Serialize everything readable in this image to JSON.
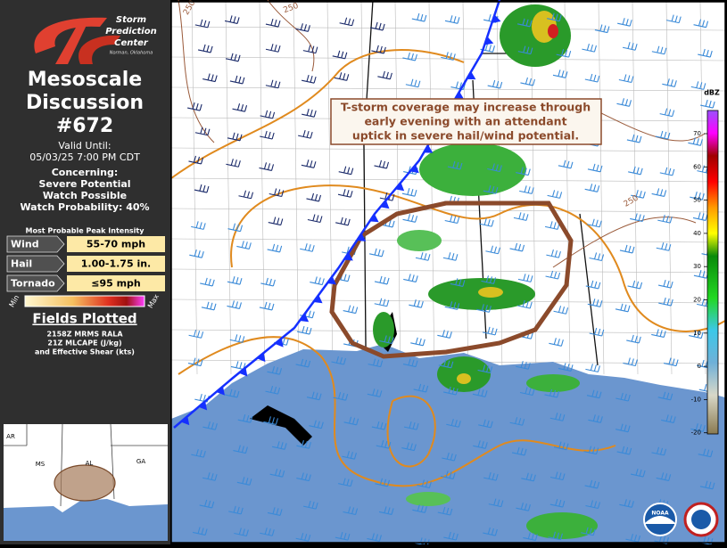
{
  "sidebar": {
    "logo": {
      "lines": [
        "Storm",
        "Prediction",
        "Center"
      ],
      "location": "Norman, Oklahoma"
    },
    "title": [
      "Mesoscale",
      "Discussion",
      "#672"
    ],
    "valid_label": "Valid Until:",
    "valid_time": "05/03/25 7:00 PM CDT",
    "concerning_label": "Concerning:",
    "concerning": [
      "Severe Potential",
      "Watch Possible"
    ],
    "watch_probability": "Watch Probability: 40%",
    "intensity_header": "Most Probable Peak Intensity",
    "intensity": [
      {
        "label": "Wind",
        "value": "55-70 mph"
      },
      {
        "label": "Hail",
        "value": "1.00-1.75 in."
      },
      {
        "label": "Tornado",
        "value": "≤95 mph"
      }
    ],
    "scale_min": "Min",
    "scale_max": "Max",
    "fields_header": "Fields Plotted",
    "fields": [
      "2158Z MRMS RALA",
      "21Z MLCAPE (J/kg)",
      "and Effective Shear (kts)"
    ]
  },
  "inset": {
    "states": [
      "AR",
      "MS",
      "AL",
      "GA"
    ]
  },
  "map": {
    "annotation": [
      "T-storm coverage may increase through",
      "early evening with an attendant",
      "uptick in severe hail/wind potential."
    ],
    "contour_labels": [
      "250",
      "250",
      "250"
    ],
    "legend": {
      "title": "dBZ",
      "ticks": [
        "70",
        "60",
        "50",
        "40",
        "30",
        "20",
        "10",
        "0",
        "-10",
        "-20"
      ]
    },
    "logo_text": "NOAA"
  }
}
